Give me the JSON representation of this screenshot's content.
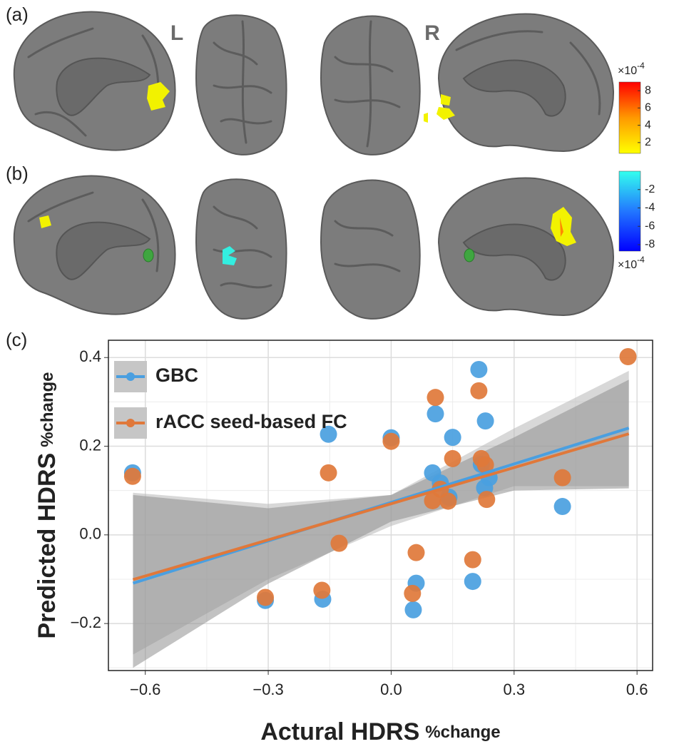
{
  "panels": {
    "a": "(a)",
    "b": "(b)",
    "c": "(c)",
    "left": "L",
    "right": "R"
  },
  "colorbars": [
    {
      "scale_label": "×10",
      "scale_exp": "-4",
      "lim": [
        0.75,
        9
      ],
      "ticks": [
        2,
        4,
        6,
        8
      ],
      "colors": [
        "#ffff00",
        "#ff9900",
        "#ff0000"
      ]
    },
    {
      "scale_label": "×10",
      "scale_exp": "-4",
      "lim": [
        0,
        -8.7
      ],
      "ticks": [
        -2,
        -4,
        -6,
        -8
      ],
      "colors": [
        "#33ffee",
        "#2277ff",
        "#0000ff"
      ]
    }
  ],
  "chart_data": {
    "type": "scatter",
    "xlabel": "Actural HDRS",
    "xlabel_unit": "%change",
    "ylabel": "Predicted HDRS",
    "ylabel_unit": "%change",
    "xlim": [
      -0.69,
      0.638
    ],
    "ylim": [
      -0.306,
      0.439
    ],
    "xticks": [
      {
        "value": -0.6,
        "label": "−0.6"
      },
      {
        "value": -0.3,
        "label": "−0.3"
      },
      {
        "value": 0,
        "label": "0.0"
      },
      0.3,
      0.6
    ],
    "yticks": [
      {
        "value": -0.2,
        "label": "−0.2"
      },
      {
        "value": 0,
        "label": "0.0"
      },
      0.2,
      0.4
    ],
    "x_minor_grid": [
      -0.45,
      -0.15,
      0.15,
      0.45
    ],
    "y_minor_grid": [
      -0.3,
      -0.1,
      0.1,
      0.3
    ],
    "grid": true,
    "legend": "upper left",
    "series": [
      {
        "name": "GBC",
        "color": "#4a9fe0",
        "band_color": "#b8b8b8",
        "x": [
          -0.631,
          -0.153,
          -0.307,
          -0.167,
          0.0,
          0.054,
          0.061,
          0.108,
          0.101,
          0.12,
          0.141,
          0.15,
          0.214,
          0.22,
          0.199,
          0.23,
          0.228,
          0.239,
          0.418
        ],
        "values": [
          0.14,
          0.227,
          -0.148,
          -0.145,
          0.219,
          -0.169,
          -0.109,
          0.273,
          0.14,
          0.117,
          0.085,
          0.22,
          0.373,
          0.159,
          -0.105,
          0.257,
          0.106,
          0.129,
          0.064
        ],
        "fit": {
          "x": [
            -0.63,
            0.58
          ],
          "y": [
            -0.109,
            0.241
          ]
        },
        "band": {
          "x": [
            -0.63,
            -0.3,
            0,
            0.3,
            0.58
          ],
          "lower": [
            -0.27,
            -0.1,
            0.02,
            0.11,
            0.11
          ],
          "upper": [
            0.095,
            0.07,
            0.09,
            0.24,
            0.37
          ]
        }
      },
      {
        "name": "rACC seed-based FC",
        "color": "#e0783a",
        "band_color": "#8f8f8f",
        "x": [
          -0.631,
          -0.153,
          -0.307,
          -0.127,
          -0.169,
          0.0,
          0.052,
          0.061,
          0.108,
          0.101,
          0.12,
          0.139,
          0.15,
          0.214,
          0.22,
          0.199,
          0.23,
          0.233,
          0.418,
          0.578
        ],
        "values": [
          0.132,
          0.14,
          -0.141,
          -0.019,
          -0.125,
          0.211,
          -0.132,
          -0.04,
          0.31,
          0.077,
          0.103,
          0.076,
          0.172,
          0.325,
          0.172,
          -0.056,
          0.158,
          0.08,
          0.129,
          0.402
        ],
        "fit": {
          "x": [
            -0.63,
            0.58
          ],
          "y": [
            -0.101,
            0.228
          ]
        },
        "band": {
          "x": [
            -0.63,
            -0.3,
            0,
            0.3,
            0.58
          ],
          "lower": [
            -0.3,
            -0.11,
            0.03,
            0.1,
            0.105
          ],
          "upper": [
            0.09,
            0.06,
            0.09,
            0.22,
            0.35
          ]
        }
      }
    ]
  }
}
